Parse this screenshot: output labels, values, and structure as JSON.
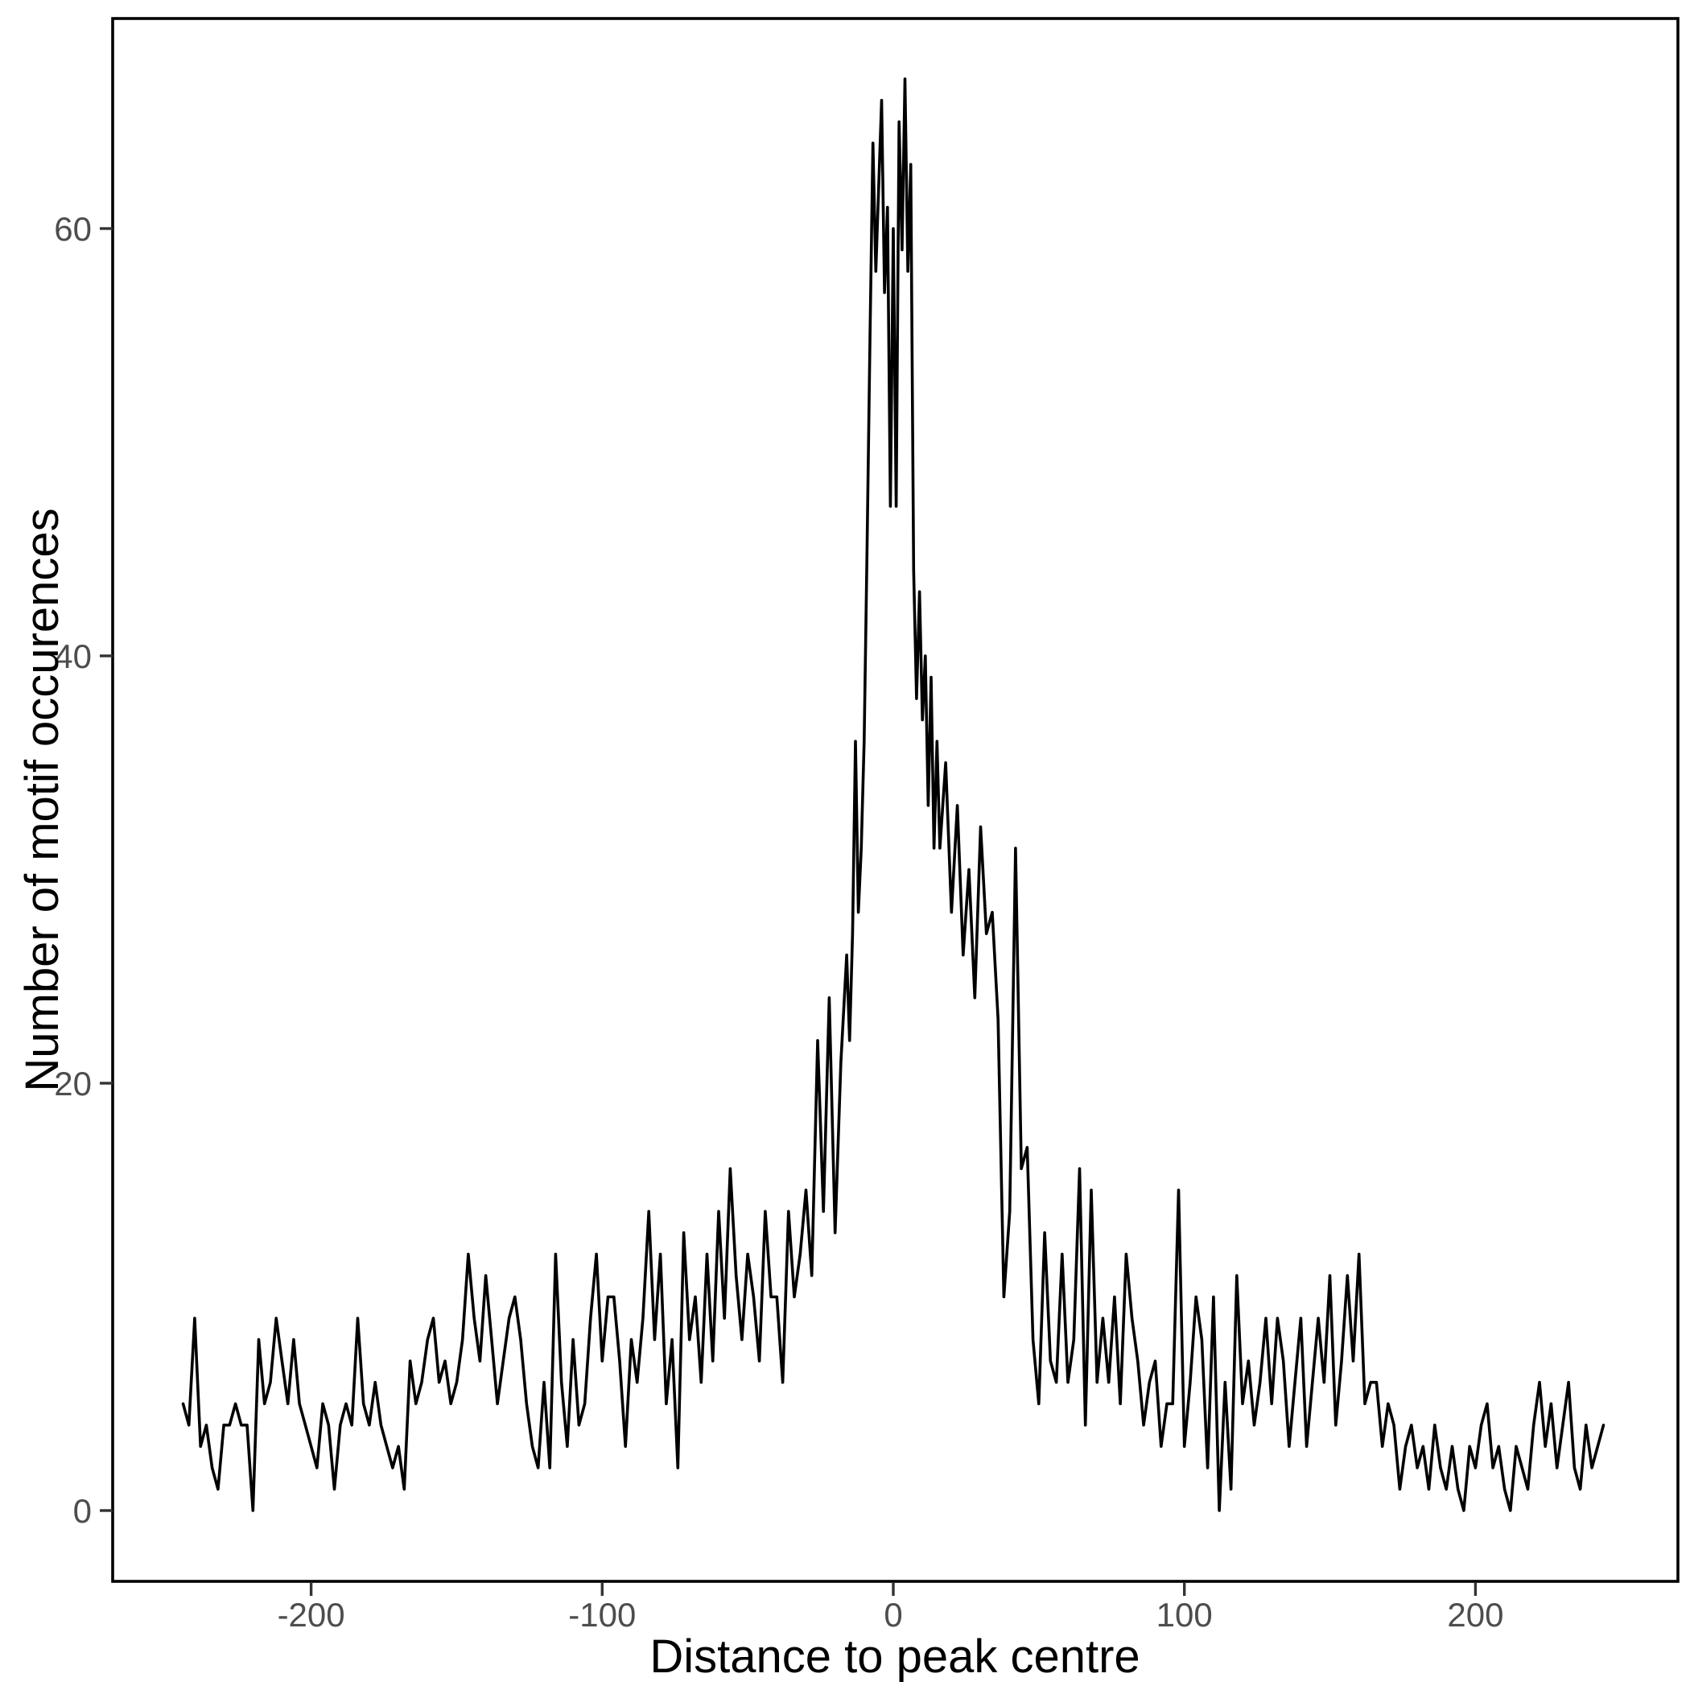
{
  "figure": {
    "background_color": "#ffffff"
  },
  "chart_data": {
    "type": "line",
    "title": "",
    "xlabel": "Distance to peak centre",
    "ylabel": "Number of motif occurences",
    "legend": "none",
    "grid": false,
    "line_color": "#000000",
    "tick_label_color": "#4d4d4d",
    "axis_title_color": "#000000",
    "panel_border": true,
    "xlim": [
      -269,
      270
    ],
    "ylim": [
      -3.3,
      69.8
    ],
    "x_ticks": [
      {
        "value": -200,
        "label": "-200"
      },
      {
        "value": -100,
        "label": "-100"
      },
      {
        "value": 0,
        "label": "0"
      },
      {
        "value": 100,
        "label": "100"
      },
      {
        "value": 200,
        "label": "200"
      }
    ],
    "y_ticks": [
      {
        "value": 0,
        "label": "0"
      },
      {
        "value": 20,
        "label": "20"
      },
      {
        "value": 40,
        "label": "40"
      },
      {
        "value": 60,
        "label": "60"
      }
    ],
    "x": [
      -244,
      -242,
      -240,
      -238,
      -236,
      -234,
      -232,
      -230,
      -228,
      -226,
      -224,
      -222,
      -220,
      -218,
      -216,
      -214,
      -212,
      -210,
      -208,
      -206,
      -204,
      -202,
      -200,
      -198,
      -196,
      -194,
      -192,
      -190,
      -188,
      -186,
      -184,
      -182,
      -180,
      -178,
      -176,
      -174,
      -172,
      -170,
      -168,
      -166,
      -164,
      -162,
      -160,
      -158,
      -156,
      -154,
      -152,
      -150,
      -148,
      -146,
      -144,
      -142,
      -140,
      -138,
      -136,
      -134,
      -132,
      -130,
      -128,
      -126,
      -124,
      -122,
      -120,
      -118,
      -116,
      -114,
      -112,
      -110,
      -108,
      -106,
      -104,
      -102,
      -100,
      -98,
      -96,
      -94,
      -92,
      -90,
      -88,
      -86,
      -84,
      -82,
      -80,
      -78,
      -76,
      -74,
      -72,
      -70,
      -68,
      -66,
      -64,
      -62,
      -60,
      -58,
      -56,
      -54,
      -52,
      -50,
      -48,
      -46,
      -44,
      -42,
      -40,
      -38,
      -36,
      -34,
      -32,
      -30,
      -28,
      -26,
      -24,
      -22,
      -20,
      -18,
      -16,
      -15,
      -14,
      -13,
      -12,
      -11,
      -10,
      -9,
      -8,
      -7,
      -6,
      -5,
      -4,
      -3,
      -2,
      -1,
      0,
      1,
      2,
      3,
      4,
      5,
      6,
      7,
      8,
      9,
      10,
      11,
      12,
      13,
      14,
      15,
      16,
      18,
      20,
      22,
      24,
      26,
      28,
      30,
      32,
      34,
      36,
      38,
      40,
      42,
      44,
      46,
      48,
      50,
      52,
      54,
      56,
      58,
      60,
      62,
      64,
      66,
      68,
      70,
      72,
      74,
      76,
      78,
      80,
      82,
      84,
      86,
      88,
      90,
      92,
      94,
      96,
      98,
      100,
      102,
      104,
      106,
      108,
      110,
      112,
      114,
      116,
      118,
      120,
      122,
      124,
      126,
      128,
      130,
      132,
      134,
      136,
      138,
      140,
      142,
      144,
      146,
      148,
      150,
      152,
      154,
      156,
      158,
      160,
      162,
      164,
      166,
      168,
      170,
      172,
      174,
      176,
      178,
      180,
      182,
      184,
      186,
      188,
      190,
      192,
      194,
      196,
      198,
      200,
      202,
      204,
      206,
      208,
      210,
      212,
      214,
      216,
      218,
      220,
      222,
      224,
      226,
      228,
      230,
      232,
      234,
      236,
      238,
      240,
      242,
      244
    ],
    "y": [
      5,
      4,
      9,
      3,
      4,
      2,
      1,
      4,
      4,
      5,
      4,
      4,
      0,
      8,
      5,
      6,
      9,
      7,
      5,
      8,
      5,
      4,
      3,
      2,
      5,
      4,
      1,
      4,
      5,
      4,
      9,
      5,
      4,
      6,
      4,
      3,
      2,
      3,
      1,
      7,
      5,
      6,
      8,
      9,
      6,
      7,
      5,
      6,
      8,
      12,
      9,
      7,
      11,
      8,
      5,
      7,
      9,
      10,
      8,
      5,
      3,
      2,
      6,
      2,
      12,
      6,
      3,
      8,
      4,
      5,
      9,
      12,
      7,
      10,
      10,
      7,
      3,
      8,
      6,
      9,
      14,
      8,
      12,
      5,
      8,
      2,
      13,
      8,
      10,
      6,
      12,
      7,
      14,
      9,
      16,
      11,
      8,
      12,
      10,
      7,
      14,
      10,
      10,
      6,
      14,
      10,
      12,
      15,
      11,
      22,
      14,
      24,
      13,
      21,
      26,
      22,
      27,
      36,
      28,
      31,
      36,
      45,
      55,
      64,
      58,
      62,
      66,
      57,
      61,
      47,
      60,
      47,
      65,
      59,
      67,
      58,
      63,
      44,
      38,
      43,
      37,
      40,
      33,
      39,
      31,
      36,
      31,
      35,
      28,
      33,
      26,
      30,
      24,
      32,
      27,
      28,
      23,
      10,
      14,
      31,
      16,
      17,
      8,
      5,
      13,
      7,
      6,
      12,
      6,
      8,
      16,
      4,
      15,
      6,
      9,
      6,
      10,
      5,
      12,
      9,
      7,
      4,
      6,
      7,
      3,
      5,
      5,
      15,
      3,
      6,
      10,
      8,
      2,
      10,
      0,
      6,
      1,
      11,
      5,
      7,
      4,
      6,
      9,
      5,
      9,
      7,
      3,
      6,
      9,
      3,
      6,
      9,
      6,
      11,
      4,
      7,
      11,
      7,
      12,
      5,
      6,
      6,
      3,
      5,
      4,
      1,
      3,
      4,
      2,
      3,
      1,
      4,
      2,
      1,
      3,
      1,
      0,
      3,
      2,
      4,
      5,
      2,
      3,
      1,
      0,
      3,
      2,
      1,
      4,
      6,
      3,
      5,
      2,
      4,
      6,
      2,
      1,
      4,
      2,
      3,
      4
    ]
  }
}
